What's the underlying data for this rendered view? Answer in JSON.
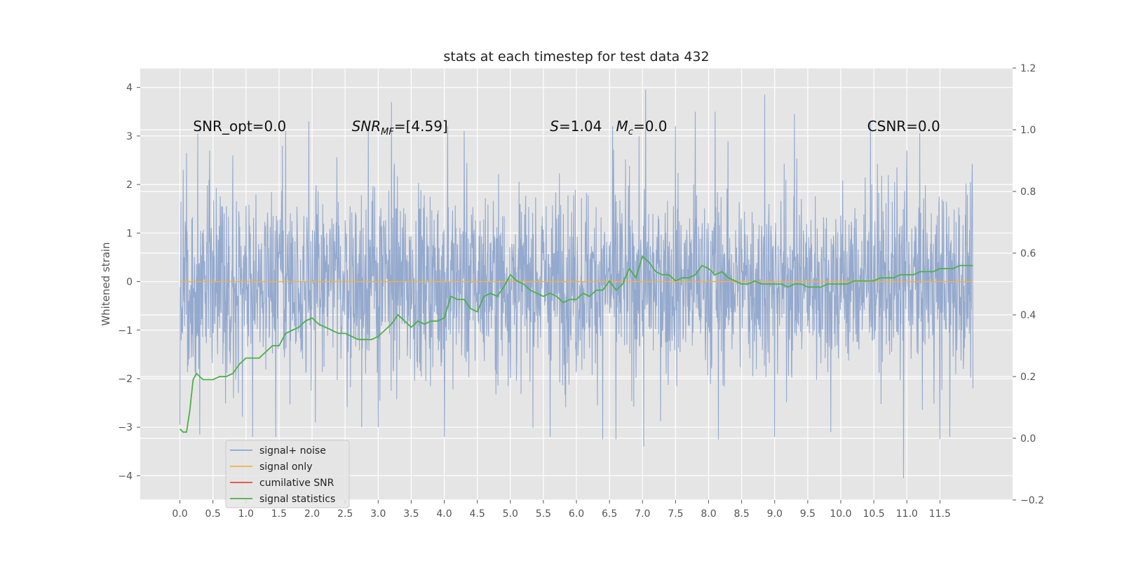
{
  "chart_data": {
    "type": "line",
    "title": "stats at each timestep for test data 432",
    "ylabel": "Whitened strain",
    "xlim": [
      -0.6,
      12.6
    ],
    "ylim_left": [
      -4.5,
      4.4
    ],
    "ylim_right": [
      -0.2,
      1.2
    ],
    "x_ticks": [
      "0.0",
      "0.5",
      "1.0",
      "1.5",
      "2.0",
      "2.5",
      "3.0",
      "3.5",
      "4.0",
      "4.5",
      "5.0",
      "5.5",
      "6.0",
      "6.5",
      "7.0",
      "7.5",
      "8.0",
      "8.5",
      "9.0",
      "9.5",
      "10.0",
      "10.5",
      "11.0",
      "11.5"
    ],
    "y_ticks_left": [
      "−4",
      "−3",
      "−2",
      "−1",
      "0",
      "1",
      "2",
      "3",
      "4"
    ],
    "y_ticks_right": [
      "−0.2",
      "0.0",
      "0.2",
      "0.4",
      "0.6",
      "0.8",
      "1.0",
      "1.2"
    ],
    "grid": true,
    "legend_position": "lower-left",
    "colors": {
      "noise": "#8fa5cc",
      "signal": "#f2b248",
      "snr": "#e24a33",
      "stats": "#4daf4a",
      "background": "#e5e5e5",
      "grid": "#ffffff"
    },
    "annotations": [
      {
        "text": "SNR_opt=0.0",
        "x": 0.2,
        "y": 3.1
      },
      {
        "text": "SNR_MF=[4.59]",
        "x": 2.6,
        "y": 3.1
      },
      {
        "text": "S=1.04",
        "x": 5.6,
        "y": 3.1
      },
      {
        "text": "M_c=0.0",
        "x": 6.6,
        "y": 3.1
      },
      {
        "text": "CSNR=0.0",
        "x": 10.4,
        "y": 3.1
      }
    ],
    "series": [
      {
        "name": "signal+ noise",
        "axis": "left",
        "x_range": [
          0.0,
          12.0
        ],
        "amplitude_min": -4.1,
        "amplitude_max": 4.0,
        "typical_range": [
          -2.0,
          2.0
        ],
        "peaks": [
          {
            "x": 0.0,
            "y": 1.3
          },
          {
            "x": 0.0,
            "y": -2.95
          },
          {
            "x": 0.05,
            "y": 2.3
          },
          {
            "x": 0.1,
            "y": 2.65
          },
          {
            "x": 0.27,
            "y": 3.05
          },
          {
            "x": 0.3,
            "y": -3.15
          },
          {
            "x": 0.45,
            "y": 2.7
          },
          {
            "x": 0.8,
            "y": 2.6
          },
          {
            "x": 1.1,
            "y": -3.2
          },
          {
            "x": 1.45,
            "y": -3.2
          },
          {
            "x": 1.55,
            "y": 2.8
          },
          {
            "x": 1.6,
            "y": 3.1
          },
          {
            "x": 1.95,
            "y": 3.3
          },
          {
            "x": 2.05,
            "y": -2.9
          },
          {
            "x": 2.75,
            "y": -3.0
          },
          {
            "x": 2.85,
            "y": 3.2
          },
          {
            "x": 3.0,
            "y": -3.0
          },
          {
            "x": 3.2,
            "y": 3.7
          },
          {
            "x": 4.0,
            "y": -3.2
          },
          {
            "x": 4.05,
            "y": 3.2
          },
          {
            "x": 4.3,
            "y": 3.1
          },
          {
            "x": 5.6,
            "y": -3.2
          },
          {
            "x": 6.0,
            "y": -1.3
          },
          {
            "x": 6.4,
            "y": -3.25
          },
          {
            "x": 6.55,
            "y": 3.2
          },
          {
            "x": 6.6,
            "y": -3.25
          },
          {
            "x": 7.05,
            "y": 3.95
          },
          {
            "x": 7.02,
            "y": -3.4
          },
          {
            "x": 7.5,
            "y": 3.2
          },
          {
            "x": 7.8,
            "y": 3.5
          },
          {
            "x": 8.1,
            "y": 3.5
          },
          {
            "x": 8.15,
            "y": -3.25
          },
          {
            "x": 8.85,
            "y": 3.85
          },
          {
            "x": 9.0,
            "y": -3.2
          },
          {
            "x": 9.3,
            "y": 3.45
          },
          {
            "x": 9.85,
            "y": -3.1
          },
          {
            "x": 10.45,
            "y": 3.3
          },
          {
            "x": 10.95,
            "y": -4.05
          },
          {
            "x": 11.0,
            "y": 2.7
          },
          {
            "x": 11.5,
            "y": -3.25
          },
          {
            "x": 11.65,
            "y": -3.2
          },
          {
            "x": 12.0,
            "y": 2.3
          },
          {
            "x": 12.0,
            "y": -2.2
          }
        ]
      },
      {
        "name": "signal only",
        "axis": "left",
        "x": [
          0.0,
          12.0
        ],
        "y": [
          0.0,
          0.0
        ]
      },
      {
        "name": "cumilative SNR",
        "axis": "left",
        "x": [],
        "y": []
      },
      {
        "name": "signal statistics",
        "axis": "right",
        "x": [
          0.0,
          0.05,
          0.1,
          0.15,
          0.2,
          0.25,
          0.3,
          0.35,
          0.4,
          0.45,
          0.5,
          0.6,
          0.7,
          0.8,
          0.9,
          1.0,
          1.1,
          1.2,
          1.3,
          1.4,
          1.5,
          1.6,
          1.7,
          1.8,
          1.9,
          2.0,
          2.1,
          2.2,
          2.3,
          2.4,
          2.5,
          2.6,
          2.7,
          2.8,
          2.9,
          3.0,
          3.1,
          3.2,
          3.3,
          3.4,
          3.5,
          3.6,
          3.7,
          3.8,
          3.9,
          4.0,
          4.1,
          4.2,
          4.3,
          4.4,
          4.5,
          4.6,
          4.7,
          4.8,
          4.9,
          5.0,
          5.1,
          5.2,
          5.3,
          5.4,
          5.5,
          5.6,
          5.7,
          5.8,
          5.9,
          6.0,
          6.1,
          6.2,
          6.3,
          6.4,
          6.5,
          6.6,
          6.7,
          6.8,
          6.9,
          7.0,
          7.1,
          7.2,
          7.3,
          7.4,
          7.5,
          7.6,
          7.7,
          7.8,
          7.9,
          8.0,
          8.1,
          8.2,
          8.3,
          8.4,
          8.5,
          8.6,
          8.7,
          8.8,
          8.9,
          9.0,
          9.1,
          9.2,
          9.3,
          9.4,
          9.5,
          9.6,
          9.7,
          9.8,
          9.9,
          10.0,
          10.1,
          10.2,
          10.3,
          10.4,
          10.5,
          10.6,
          10.7,
          10.8,
          10.9,
          11.0,
          11.1,
          11.2,
          11.3,
          11.4,
          11.5,
          11.6,
          11.7,
          11.8,
          11.9,
          12.0
        ],
        "y": [
          0.03,
          0.02,
          0.02,
          0.09,
          0.19,
          0.21,
          0.2,
          0.19,
          0.19,
          0.19,
          0.19,
          0.2,
          0.2,
          0.21,
          0.24,
          0.26,
          0.26,
          0.26,
          0.28,
          0.3,
          0.3,
          0.34,
          0.35,
          0.36,
          0.38,
          0.39,
          0.37,
          0.36,
          0.35,
          0.34,
          0.34,
          0.33,
          0.32,
          0.32,
          0.32,
          0.33,
          0.35,
          0.37,
          0.4,
          0.38,
          0.36,
          0.38,
          0.37,
          0.38,
          0.38,
          0.39,
          0.46,
          0.45,
          0.45,
          0.42,
          0.41,
          0.46,
          0.47,
          0.46,
          0.49,
          0.53,
          0.51,
          0.5,
          0.48,
          0.47,
          0.46,
          0.47,
          0.46,
          0.44,
          0.45,
          0.45,
          0.47,
          0.46,
          0.48,
          0.48,
          0.51,
          0.48,
          0.5,
          0.55,
          0.52,
          0.59,
          0.57,
          0.54,
          0.53,
          0.53,
          0.51,
          0.52,
          0.52,
          0.53,
          0.56,
          0.55,
          0.53,
          0.54,
          0.52,
          0.51,
          0.5,
          0.5,
          0.51,
          0.5,
          0.5,
          0.5,
          0.5,
          0.49,
          0.5,
          0.5,
          0.49,
          0.49,
          0.49,
          0.5,
          0.5,
          0.5,
          0.5,
          0.51,
          0.51,
          0.51,
          0.51,
          0.52,
          0.52,
          0.52,
          0.53,
          0.53,
          0.53,
          0.54,
          0.54,
          0.54,
          0.55,
          0.55,
          0.55,
          0.56,
          0.56,
          0.56
        ]
      }
    ]
  }
}
